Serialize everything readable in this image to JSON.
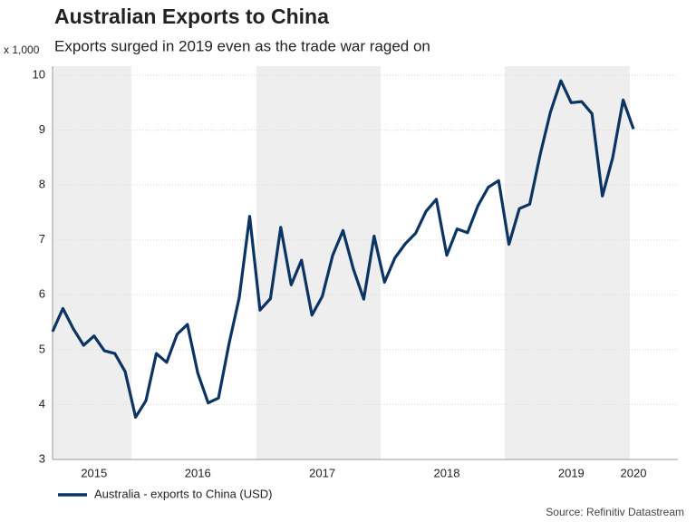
{
  "chart_data": {
    "type": "line",
    "title": "Australian Exports to China",
    "subtitle": "Exports surged in 2019 even as the trade war raged on",
    "y_unit_label": "x 1,000",
    "source": "Source: Refinitiv Datastream",
    "categories": [
      null,
      null,
      null,
      null,
      "2015",
      null,
      null,
      null,
      null,
      null,
      null,
      null,
      null,
      null,
      "2016",
      null,
      null,
      null,
      null,
      null,
      null,
      null,
      null,
      null,
      null,
      null,
      "2017",
      null,
      null,
      null,
      null,
      null,
      null,
      null,
      null,
      null,
      null,
      null,
      "2018",
      null,
      null,
      null,
      null,
      null,
      null,
      null,
      null,
      null,
      null,
      null,
      "2019",
      null,
      null,
      null,
      null,
      null,
      "2020"
    ],
    "series": [
      {
        "name": "Australia - exports to China (USD)",
        "color": "#0b3463",
        "values": [
          5.33,
          5.75,
          5.38,
          5.08,
          5.25,
          4.98,
          4.93,
          4.6,
          3.77,
          4.07,
          4.93,
          4.77,
          5.28,
          5.46,
          4.57,
          4.03,
          4.12,
          5.1,
          5.95,
          7.43,
          5.72,
          5.93,
          7.23,
          6.18,
          6.63,
          5.63,
          5.97,
          6.72,
          7.17,
          6.47,
          5.92,
          7.07,
          6.23,
          6.67,
          6.93,
          7.12,
          7.52,
          7.74,
          6.72,
          7.2,
          7.13,
          7.62,
          7.96,
          8.08,
          6.92,
          7.57,
          7.65,
          8.55,
          9.33,
          9.9,
          9.5,
          9.52,
          9.3,
          7.8,
          8.5,
          9.55,
          9.02
        ]
      }
    ],
    "ylim": [
      3,
      10
    ],
    "yticks": [
      3,
      4,
      5,
      6,
      7,
      8,
      9,
      10
    ],
    "grid": true,
    "legend": "bottom-left"
  }
}
